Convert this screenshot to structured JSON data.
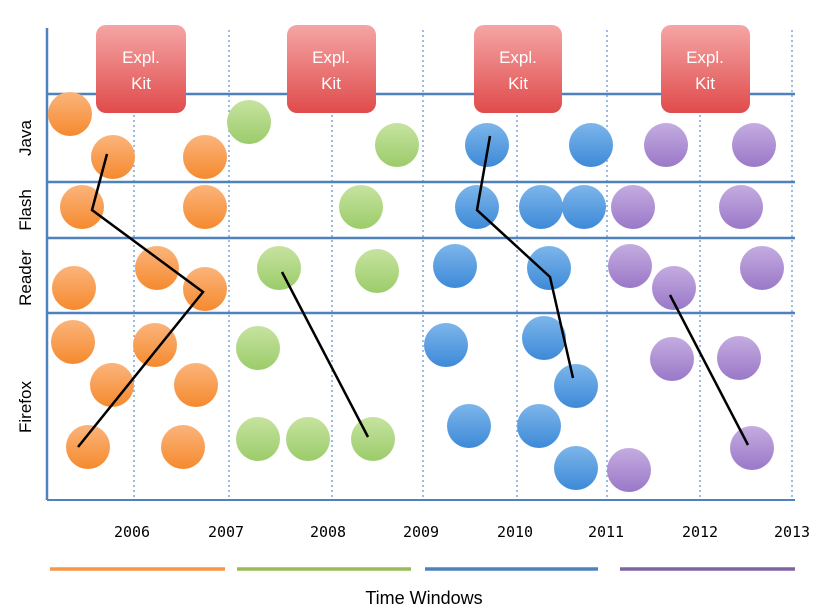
{
  "title": "",
  "rows": [
    {
      "key": "java",
      "label": "Java"
    },
    {
      "key": "flash",
      "label": "Flash"
    },
    {
      "key": "reader",
      "label": "Reader"
    },
    {
      "key": "firefox",
      "label": "Firefox"
    }
  ],
  "years": [
    "2006",
    "2007",
    "2008",
    "2009",
    "2010",
    "2011",
    "2012",
    "2013"
  ],
  "kits": [
    {
      "label_line1": "Expl.",
      "label_line2": "Kit",
      "window": 1
    },
    {
      "label_line1": "Expl.",
      "label_line2": "Kit",
      "window": 2
    },
    {
      "label_line1": "Expl.",
      "label_line2": "Kit",
      "window": 3
    },
    {
      "label_line1": "Expl.",
      "label_line2": "Kit",
      "window": 4
    }
  ],
  "axis_title": "Time Windows",
  "colors": {
    "window1": "#f79646",
    "window2": "#9bbb59",
    "window3": "#4f81bd",
    "window4": "#8064a2",
    "kit": "#e05050",
    "grid_solid": "#4f81bd",
    "grid_dotted": "#4f81bd"
  }
}
